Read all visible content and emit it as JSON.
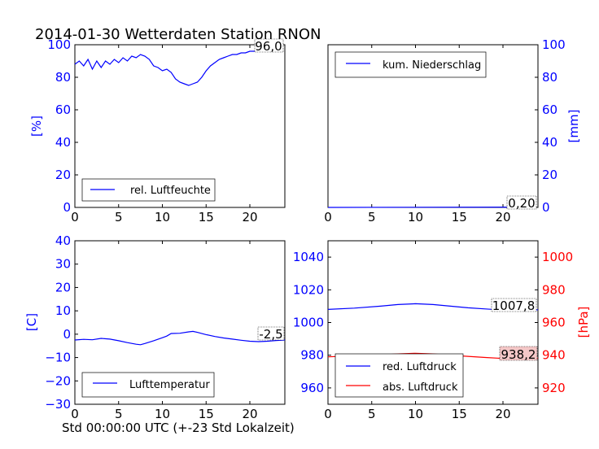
{
  "title": "2014-01-30 Wetterdaten Station RNON",
  "footer": "Std 00:00:00 UTC (+-23 Std Lokalzeit)",
  "colors": {
    "blue": "#0000ff",
    "red": "#ff0000",
    "label_box_red": "#f4c7c7"
  },
  "chart_data": [
    {
      "type": "line",
      "name": "humidity",
      "xlim": [
        0,
        24
      ],
      "ylim": [
        0,
        100
      ],
      "x_ticks": [
        "0",
        "5",
        "10",
        "15",
        "20"
      ],
      "y_ticks": [
        "0",
        "20",
        "40",
        "60",
        "80",
        "100"
      ],
      "ylabel": "[%]",
      "legend": "top-left-inside bottom",
      "current_value_label": "96,0",
      "series": [
        {
          "name": "rel. Luftfeuchte",
          "color": "#0000ff",
          "points": [
            [
              0,
              88
            ],
            [
              0.5,
              90
            ],
            [
              1,
              87
            ],
            [
              1.5,
              91
            ],
            [
              2,
              85
            ],
            [
              2.5,
              90
            ],
            [
              3,
              86
            ],
            [
              3.5,
              90
            ],
            [
              4,
              88
            ],
            [
              4.5,
              91
            ],
            [
              5,
              89
            ],
            [
              5.5,
              92
            ],
            [
              6,
              90
            ],
            [
              6.5,
              93
            ],
            [
              7,
              92
            ],
            [
              7.5,
              94
            ],
            [
              8,
              93
            ],
            [
              8.5,
              91
            ],
            [
              9,
              87
            ],
            [
              9.5,
              86
            ],
            [
              10,
              84
            ],
            [
              10.5,
              85
            ],
            [
              11,
              83
            ],
            [
              11.5,
              79
            ],
            [
              12,
              77
            ],
            [
              12.5,
              76
            ],
            [
              13,
              75
            ],
            [
              13.5,
              76
            ],
            [
              14,
              77
            ],
            [
              14.5,
              80
            ],
            [
              15,
              84
            ],
            [
              15.5,
              87
            ],
            [
              16,
              89
            ],
            [
              16.5,
              91
            ],
            [
              17,
              92
            ],
            [
              17.5,
              93
            ],
            [
              18,
              94
            ],
            [
              18.5,
              94
            ],
            [
              19,
              95
            ],
            [
              19.5,
              95
            ],
            [
              20,
              96
            ],
            [
              20.5,
              96
            ],
            [
              21,
              96
            ],
            [
              21.5,
              96
            ],
            [
              22,
              96
            ],
            [
              22.5,
              96
            ],
            [
              23,
              96
            ],
            [
              23.5,
              96
            ]
          ]
        }
      ]
    },
    {
      "type": "line",
      "name": "precipitation",
      "xlim": [
        0,
        24
      ],
      "ylim": [
        0,
        100
      ],
      "x_ticks": [
        "0",
        "5",
        "10",
        "15",
        "20"
      ],
      "y_ticks": [
        "0",
        "20",
        "40",
        "60",
        "80",
        "100"
      ],
      "ylabel": "[mm]",
      "legend": "top-left",
      "current_value_label": "0,20",
      "series": [
        {
          "name": "kum. Niederschlag",
          "color": "#0000ff",
          "points": [
            [
              0,
              0
            ],
            [
              23.8,
              0.2
            ]
          ]
        }
      ]
    },
    {
      "type": "line",
      "name": "temperature",
      "xlim": [
        0,
        24
      ],
      "ylim": [
        -30,
        40
      ],
      "x_ticks": [
        "0",
        "5",
        "10",
        "15",
        "20"
      ],
      "y_ticks": [
        "−30",
        "−20",
        "−10",
        "0",
        "10",
        "20",
        "30",
        "40"
      ],
      "ylabel": "[C]",
      "legend": "bottom-left",
      "current_value_label": "-2,5",
      "series": [
        {
          "name": "Lufttemperatur",
          "color": "#0000ff",
          "points": [
            [
              0,
              -2.5
            ],
            [
              1,
              -2.2
            ],
            [
              2,
              -2.4
            ],
            [
              3,
              -1.8
            ],
            [
              4,
              -2.1
            ],
            [
              5,
              -2.8
            ],
            [
              6,
              -3.6
            ],
            [
              7,
              -4.3
            ],
            [
              7.5,
              -4.5
            ],
            [
              8,
              -4.0
            ],
            [
              9,
              -2.8
            ],
            [
              10,
              -1.5
            ],
            [
              10.5,
              -0.8
            ],
            [
              11,
              0.3
            ],
            [
              12,
              0.4
            ],
            [
              13,
              1.0
            ],
            [
              13.5,
              1.2
            ],
            [
              14,
              0.8
            ],
            [
              15,
              -0.2
            ],
            [
              16,
              -1.0
            ],
            [
              17,
              -1.6
            ],
            [
              18,
              -2.1
            ],
            [
              19,
              -2.6
            ],
            [
              20,
              -3.0
            ],
            [
              21,
              -3.2
            ],
            [
              22,
              -3.0
            ],
            [
              23,
              -2.7
            ],
            [
              24,
              -2.5
            ]
          ]
        }
      ]
    },
    {
      "type": "line",
      "name": "pressure",
      "xlim": [
        0,
        24
      ],
      "ylim_left": [
        950,
        1050
      ],
      "ylim_right": [
        910,
        1010
      ],
      "x_ticks": [
        "0",
        "5",
        "10",
        "15",
        "20"
      ],
      "y_ticks_left": [
        "960",
        "980",
        "1000",
        "1020",
        "1040"
      ],
      "y_ticks_right": [
        "920",
        "940",
        "960",
        "980",
        "1000"
      ],
      "ylabel_right": "[hPa]",
      "legend": "bottom-left",
      "labels": [
        "1007,8",
        "938,2"
      ],
      "series": [
        {
          "name": "red. Luftdruck",
          "color": "#0000ff",
          "axis": "left",
          "points": [
            [
              0,
              1008
            ],
            [
              3,
              1008.8
            ],
            [
              6,
              1010
            ],
            [
              8,
              1011
            ],
            [
              10,
              1011.5
            ],
            [
              12,
              1011
            ],
            [
              14,
              1010
            ],
            [
              16,
              1009
            ],
            [
              18,
              1008.3
            ],
            [
              20,
              1007.6
            ],
            [
              22,
              1007.3
            ],
            [
              24,
              1007.8
            ]
          ]
        },
        {
          "name": "abs. Luftdruck",
          "color": "#ff0000",
          "axis": "right",
          "points": [
            [
              0,
              939
            ],
            [
              3,
              939.6
            ],
            [
              6,
              940.2
            ],
            [
              8,
              940.8
            ],
            [
              10,
              941.2
            ],
            [
              12,
              940.8
            ],
            [
              14,
              940.0
            ],
            [
              16,
              939.3
            ],
            [
              18,
              938.6
            ],
            [
              20,
              938.0
            ],
            [
              22,
              937.6
            ],
            [
              24,
              938.2
            ]
          ]
        }
      ]
    }
  ]
}
